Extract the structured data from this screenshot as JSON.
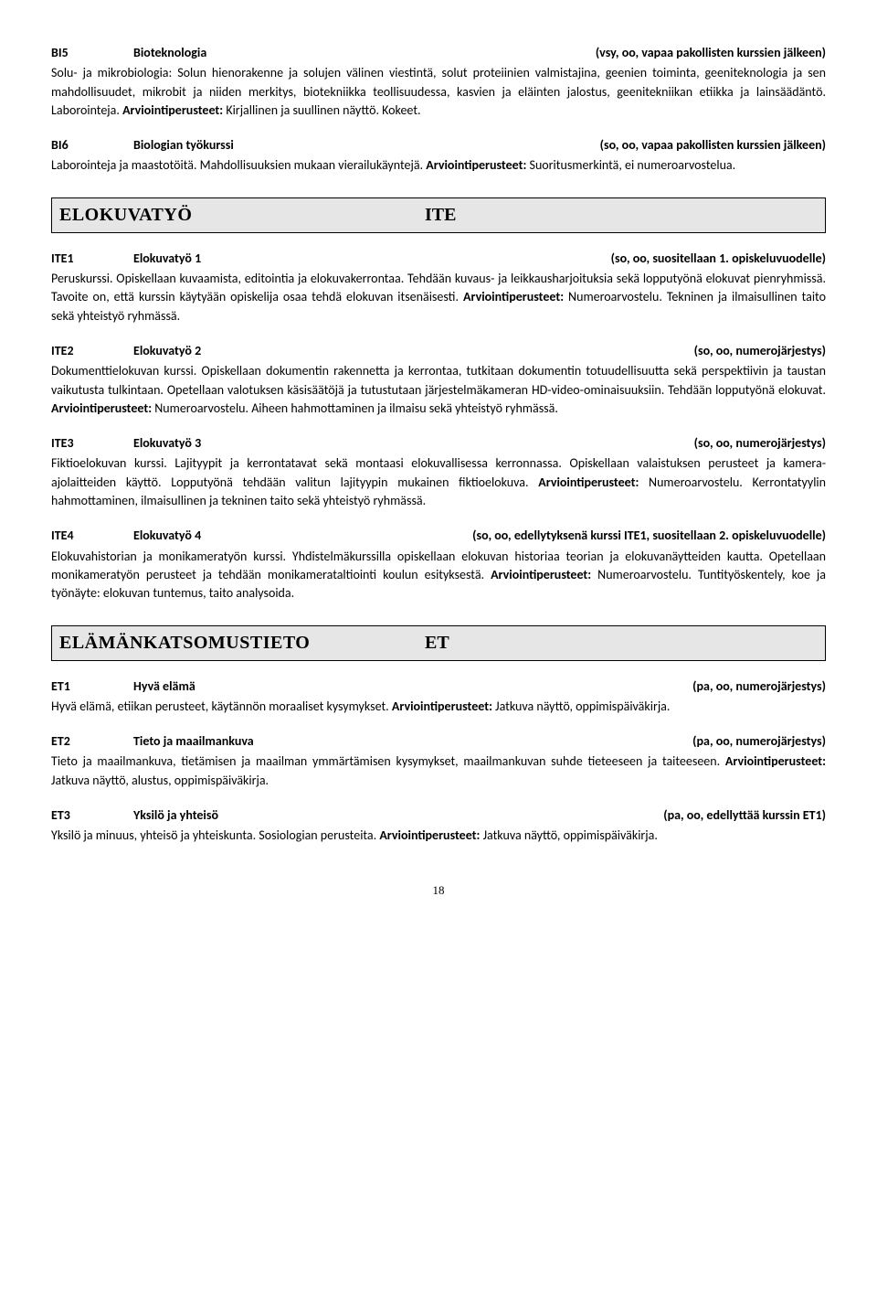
{
  "entries_top": [
    {
      "code": "BI5",
      "title": "Bioteknologia",
      "meta": "(vsy, oo, vapaa pakollisten kurssien jälkeen)",
      "body": "Solu- ja mikrobiologia: Solun hienorakenne ja solujen välinen viestintä, solut proteiinien valmistajina, geenien toiminta, geeniteknologia ja sen mahdollisuudet, mikrobit ja niiden merkitys, biotekniikka teollisuudessa, kasvien ja eläinten jalostus, geenitekniikan etiikka ja lainsäädäntö. Laborointeja. ",
      "assess_label": "Arviointiperusteet:",
      "assess": " Kirjallinen ja suullinen näyttö. Kokeet."
    },
    {
      "code": "BI6",
      "title": "Biologian työkurssi",
      "meta": "(so, oo, vapaa pakollisten kurssien jälkeen)",
      "body": "Laborointeja ja maastotöitä. Mahdollisuuksien mukaan vierailukäyntejä. ",
      "assess_label": "Arviointiperusteet:",
      "assess": " Suoritusmerkintä, ei numeroarvostelua."
    }
  ],
  "section_ite": {
    "name": "ELOKUVATYÖ",
    "abbr": "ITE"
  },
  "entries_ite": [
    {
      "code": "ITE1",
      "title": "Elokuvatyö 1",
      "meta": "(so, oo, suositellaan 1. opiskeluvuodelle)",
      "body": "Peruskurssi. Opiskellaan kuvaamista, editointia ja elokuvakerrontaa. Tehdään kuvaus- ja leikkausharjoituksia sekä lopputyönä elokuvat pienryhmissä. Tavoite on, että kurssin käytyään opiskelija osaa tehdä elokuvan itsenäisesti. ",
      "assess_label": "Arviointiperusteet:",
      "assess": " Numeroarvostelu. Tekninen ja ilmaisullinen taito sekä yhteistyö ryhmässä."
    },
    {
      "code": "ITE2",
      "title": "Elokuvatyö 2",
      "meta": "(so, oo, numerojärjestys)",
      "body": "Dokumenttielokuvan kurssi. Opiskellaan dokumentin rakennetta ja kerrontaa, tutkitaan dokumentin totuudellisuutta sekä perspektiivin ja taustan vaikutusta tulkintaan. Opetellaan valotuksen käsisäätöjä ja tutustutaan järjestelmäkameran HD-video-ominaisuuksiin. Tehdään lopputyönä elokuvat. ",
      "assess_label": "Arviointiperusteet:",
      "assess": " Numeroarvostelu. Aiheen hahmottaminen ja ilmaisu sekä yhteistyö ryhmässä."
    },
    {
      "code": "ITE3",
      "title": "Elokuvatyö 3",
      "meta": "(so, oo, numerojärjestys)",
      "body": "Fiktioelokuvan kurssi. Lajityypit ja kerrontatavat sekä montaasi elokuvallisessa kerronnassa. Opiskellaan valaistuksen perusteet ja kamera-ajolaitteiden käyttö. Lopputyönä tehdään valitun lajityypin mukainen fiktioelokuva. ",
      "assess_label": "Arviointiperusteet:",
      "assess": " Numeroarvostelu. Kerrontatyylin hahmottaminen, ilmaisullinen ja tekninen taito sekä yhteistyö ryhmässä."
    },
    {
      "code": "ITE4",
      "title": "Elokuvatyö 4",
      "meta": "(so, oo, edellytyksenä kurssi ITE1, suositellaan 2. opiskeluvuodelle)",
      "body": "Elokuvahistorian ja monikameratyön kurssi. Yhdistelmäkurssilla opiskellaan elokuvan historiaa teorian ja elokuvanäytteiden kautta. Opetellaan monikameratyön perusteet ja tehdään monikamerataltiointi koulun esityksestä. ",
      "assess_label": "Arviointiperusteet:",
      "assess": " Numeroarvostelu. Tuntityöskentely, koe ja työnäyte: elokuvan tuntemus, taito analysoida."
    }
  ],
  "section_et": {
    "name": "ELÄMÄNKATSOMUSTIETO",
    "abbr": "ET"
  },
  "entries_et": [
    {
      "code": "ET1",
      "title": "Hyvä elämä",
      "meta": "(pa, oo, numerojärjestys)",
      "body": "Hyvä elämä, etiikan perusteet, käytännön moraaliset kysymykset. ",
      "assess_label": "Arviointiperusteet:",
      "assess": " Jatkuva näyttö, oppimispäiväkirja."
    },
    {
      "code": "ET2",
      "title": "Tieto ja maailmankuva",
      "meta": "(pa, oo, numerojärjestys)",
      "body": "Tieto ja maailmankuva, tietämisen ja maailman ymmärtämisen kysymykset, maailmankuvan suhde tieteeseen ja taiteeseen. ",
      "assess_label": "Arviointiperusteet:",
      "assess": " Jatkuva näyttö, alustus, oppimispäiväkirja."
    },
    {
      "code": "ET3",
      "title": "Yksilö ja yhteisö",
      "meta": "(pa, oo, edellyttää kurssin ET1)",
      "body": "Yksilö ja minuus, yhteisö ja yhteiskunta. Sosiologian perusteita. ",
      "assess_label": "Arviointiperusteet:",
      "assess": " Jatkuva näyttö, oppimispäiväkirja."
    }
  ],
  "page_number": "18"
}
